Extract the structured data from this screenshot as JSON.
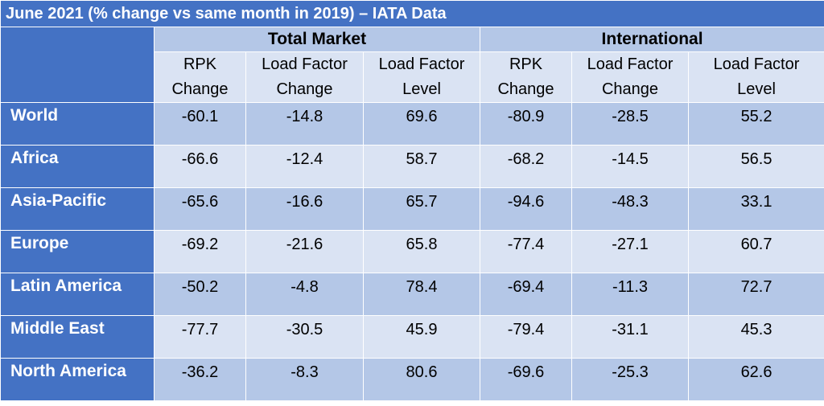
{
  "title": "June 2021 (% change vs same month in 2019) – IATA Data",
  "groups": [
    "Total Market",
    "International"
  ],
  "columns": [
    [
      "RPK",
      "Change"
    ],
    [
      "Load Factor",
      "Change"
    ],
    [
      "Load Factor",
      "Level"
    ],
    [
      "RPK",
      "Change"
    ],
    [
      "Load Factor",
      "Change"
    ],
    [
      "Load Factor",
      "Level"
    ]
  ],
  "rows": [
    {
      "region": "World",
      "values": [
        "-60.1",
        "-14.8",
        "69.6",
        "-80.9",
        "-28.5",
        "55.2"
      ]
    },
    {
      "region": "Africa",
      "values": [
        "-66.6",
        "-12.4",
        "58.7",
        "-68.2",
        "-14.5",
        "56.5"
      ]
    },
    {
      "region": "Asia-Pacific",
      "values": [
        "-65.6",
        "-16.6",
        "65.7",
        "-94.6",
        "-48.3",
        "33.1"
      ]
    },
    {
      "region": "Europe",
      "values": [
        "-69.2",
        "-21.6",
        "65.8",
        "-77.4",
        "-27.1",
        "60.7"
      ]
    },
    {
      "region": "Latin America",
      "values": [
        "-50.2",
        "-4.8",
        "78.4",
        "-69.4",
        "-11.3",
        "72.7"
      ]
    },
    {
      "region": "Middle East",
      "values": [
        "-77.7",
        "-30.5",
        "45.9",
        "-79.4",
        "-31.1",
        "45.3"
      ]
    },
    {
      "region": "North America",
      "values": [
        "-36.2",
        "-8.3",
        "80.6",
        "-69.6",
        "-25.3",
        "62.6"
      ]
    }
  ],
  "colors": {
    "header_blue": "#4472c4",
    "band_dark": "#b4c7e7",
    "band_light": "#dae3f3"
  },
  "chart_data": {
    "type": "table",
    "title": "June 2021 (% change vs same month in 2019) – IATA Data",
    "column_groups": [
      {
        "name": "Total Market",
        "columns": [
          "RPK Change",
          "Load Factor Change",
          "Load Factor Level"
        ]
      },
      {
        "name": "International",
        "columns": [
          "RPK Change",
          "Load Factor Change",
          "Load Factor Level"
        ]
      }
    ],
    "row_labels": [
      "World",
      "Africa",
      "Asia-Pacific",
      "Europe",
      "Latin America",
      "Middle East",
      "North America"
    ],
    "values": [
      [
        -60.1,
        -14.8,
        69.6,
        -80.9,
        -28.5,
        55.2
      ],
      [
        -66.6,
        -12.4,
        58.7,
        -68.2,
        -14.5,
        56.5
      ],
      [
        -65.6,
        -16.6,
        65.7,
        -94.6,
        -48.3,
        33.1
      ],
      [
        -69.2,
        -21.6,
        65.8,
        -77.4,
        -27.1,
        60.7
      ],
      [
        -50.2,
        -4.8,
        78.4,
        -69.4,
        -11.3,
        72.7
      ],
      [
        -77.7,
        -30.5,
        45.9,
        -79.4,
        -31.1,
        45.3
      ],
      [
        -36.2,
        -8.3,
        80.6,
        -69.6,
        -25.3,
        62.6
      ]
    ]
  }
}
